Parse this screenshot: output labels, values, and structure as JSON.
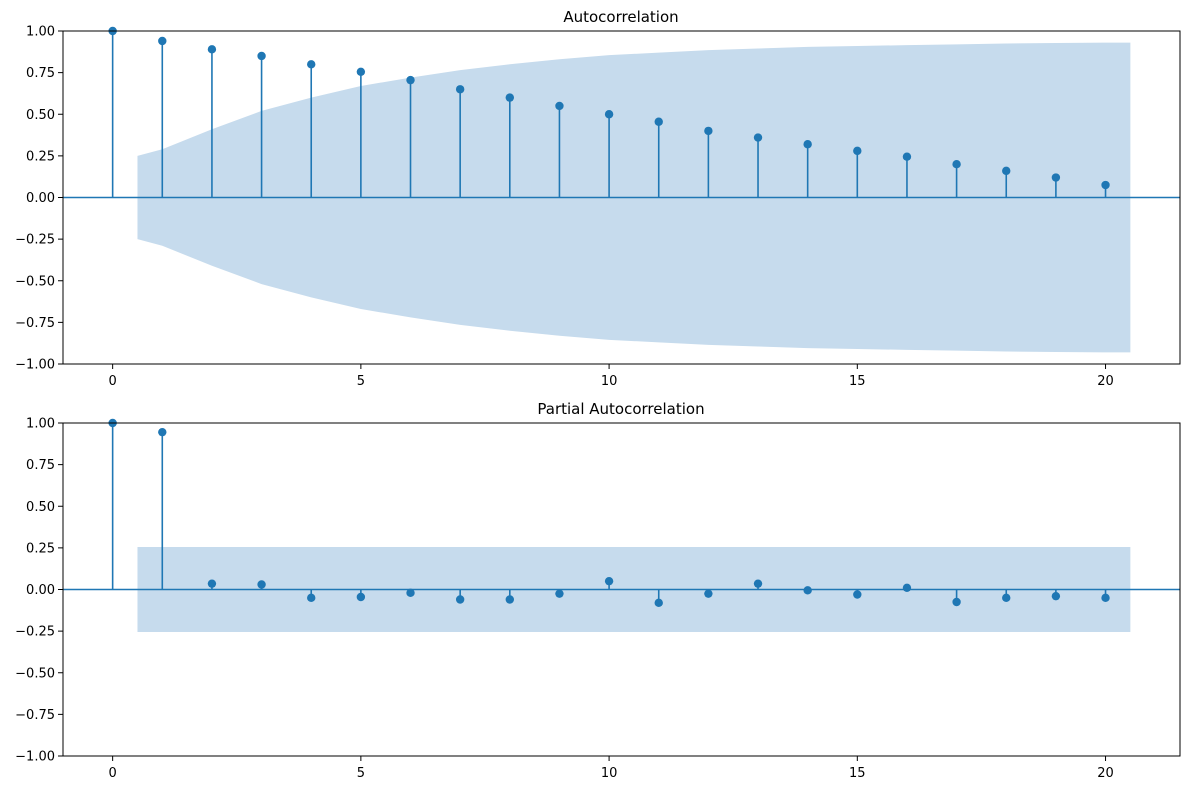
{
  "chart_data": [
    {
      "type": "stem",
      "title": "Autocorrelation",
      "xlabel": "",
      "ylabel": "",
      "xlim": [
        -1,
        21.5
      ],
      "ylim": [
        -1.0,
        1.0
      ],
      "x_ticks": [
        0,
        5,
        10,
        15,
        20
      ],
      "x_tick_labels": [
        "0",
        "5",
        "10",
        "15",
        "20"
      ],
      "y_ticks": [
        -1.0,
        -0.75,
        -0.5,
        -0.25,
        0.0,
        0.25,
        0.5,
        0.75,
        1.0
      ],
      "y_tick_labels": [
        "−1.00",
        "−0.75",
        "−0.50",
        "−0.25",
        "0.00",
        "0.25",
        "0.50",
        "0.75",
        "1.00"
      ],
      "lags": [
        0,
        1,
        2,
        3,
        4,
        5,
        6,
        7,
        8,
        9,
        10,
        11,
        12,
        13,
        14,
        15,
        16,
        17,
        18,
        19,
        20
      ],
      "values": [
        1.0,
        0.94,
        0.89,
        0.85,
        0.8,
        0.755,
        0.705,
        0.65,
        0.6,
        0.55,
        0.5,
        0.455,
        0.4,
        0.36,
        0.32,
        0.28,
        0.245,
        0.2,
        0.16,
        0.12,
        0.075
      ],
      "confidence_band": {
        "x": [
          0.5,
          1,
          2,
          3,
          4,
          5,
          6,
          7,
          8,
          9,
          10,
          11,
          12,
          13,
          14,
          15,
          16,
          17,
          18,
          19,
          20,
          20.5
        ],
        "upper": [
          0.25,
          0.29,
          0.41,
          0.52,
          0.6,
          0.67,
          0.72,
          0.765,
          0.8,
          0.83,
          0.855,
          0.87,
          0.885,
          0.895,
          0.905,
          0.91,
          0.915,
          0.92,
          0.925,
          0.928,
          0.93,
          0.93
        ]
      },
      "colors": {
        "stem": "#1f77b4",
        "band": "#c6dbed"
      }
    },
    {
      "type": "stem",
      "title": "Partial Autocorrelation",
      "xlabel": "",
      "ylabel": "",
      "xlim": [
        -1,
        21.5
      ],
      "ylim": [
        -1.0,
        1.0
      ],
      "x_ticks": [
        0,
        5,
        10,
        15,
        20
      ],
      "x_tick_labels": [
        "0",
        "5",
        "10",
        "15",
        "20"
      ],
      "y_ticks": [
        -1.0,
        -0.75,
        -0.5,
        -0.25,
        0.0,
        0.25,
        0.5,
        0.75,
        1.0
      ],
      "y_tick_labels": [
        "−1.00",
        "−0.75",
        "−0.50",
        "−0.25",
        "0.00",
        "0.25",
        "0.50",
        "0.75",
        "1.00"
      ],
      "lags": [
        0,
        1,
        2,
        3,
        4,
        5,
        6,
        7,
        8,
        9,
        10,
        11,
        12,
        13,
        14,
        15,
        16,
        17,
        18,
        19,
        20
      ],
      "values": [
        1.0,
        0.945,
        0.035,
        0.03,
        -0.05,
        -0.045,
        -0.02,
        -0.06,
        -0.06,
        -0.025,
        0.05,
        -0.08,
        -0.025,
        0.035,
        -0.005,
        -0.03,
        0.01,
        -0.075,
        -0.05,
        -0.04,
        -0.05
      ],
      "confidence_band": {
        "x": [
          0.5,
          20.5
        ],
        "upper": [
          0.255,
          0.255
        ]
      },
      "colors": {
        "stem": "#1f77b4",
        "band": "#c6dbed"
      }
    }
  ]
}
